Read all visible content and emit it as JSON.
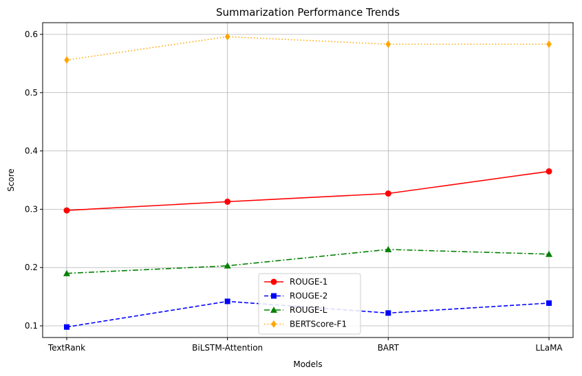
{
  "chart_data": {
    "type": "line",
    "title": "Summarization Performance Trends",
    "xlabel": "Models",
    "ylabel": "Score",
    "categories": [
      "TextRank",
      "BiLSTM-Attention",
      "BART",
      "LLaMA"
    ],
    "ylim": [
      0.08,
      0.62
    ],
    "yticks": [
      0.1,
      0.2,
      0.3,
      0.4,
      0.5,
      0.6
    ],
    "ytick_labels": [
      "0.1",
      "0.2",
      "0.3",
      "0.4",
      "0.5",
      "0.6"
    ],
    "grid": true,
    "legend_position": "bottom-center",
    "series": [
      {
        "name": "ROUGE-1",
        "values": [
          0.298,
          0.313,
          0.327,
          0.365
        ],
        "color": "#ff0000",
        "dash": "solid",
        "marker": "circle"
      },
      {
        "name": "ROUGE-2",
        "values": [
          0.098,
          0.142,
          0.122,
          0.139
        ],
        "color": "#0000ff",
        "dash": "dashed",
        "marker": "square"
      },
      {
        "name": "ROUGE-L",
        "values": [
          0.19,
          0.203,
          0.231,
          0.223
        ],
        "color": "#008000",
        "dash": "dashdot",
        "marker": "triangle"
      },
      {
        "name": "BERTScore-F1",
        "values": [
          0.556,
          0.596,
          0.583,
          0.583
        ],
        "color": "#ffa500",
        "dash": "dotted",
        "marker": "diamond"
      }
    ]
  }
}
